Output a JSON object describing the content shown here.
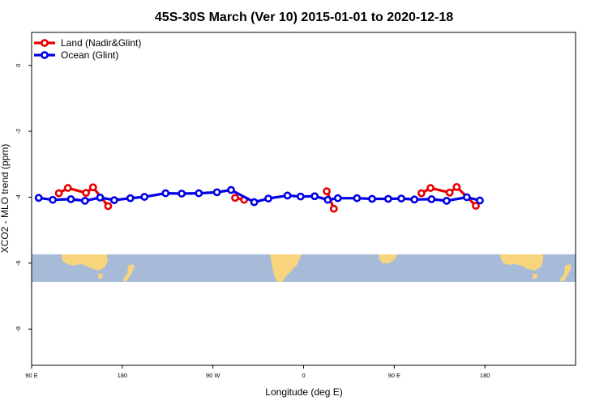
{
  "chart_data": {
    "type": "line",
    "title": "45S-30S March (Ver 10)   2015-01-01 to 2020-12-18",
    "xlabel": "Longitude (deg E)",
    "ylabel": "XCO2 - MLO trend (ppm)",
    "xlim": [
      90,
      630
    ],
    "ylim": [
      -9.1,
      1.0
    ],
    "x_ticks": [
      {
        "value": 90,
        "label": "90 E"
      },
      {
        "value": 180,
        "label": "180"
      },
      {
        "value": 270,
        "label": "90 W"
      },
      {
        "value": 360,
        "label": "0"
      },
      {
        "value": 450,
        "label": "90 E"
      },
      {
        "value": 540,
        "label": "180"
      }
    ],
    "y_ticks": [
      {
        "value": 0,
        "label": "0"
      },
      {
        "value": -2,
        "label": "-2"
      },
      {
        "value": -4,
        "label": "-4"
      },
      {
        "value": -6,
        "label": "-6"
      },
      {
        "value": -8,
        "label": "-8"
      }
    ],
    "legend_position": "top-left",
    "grid": false,
    "map_strip": {
      "y_top": -5.72,
      "y_bottom": -6.55,
      "ocean_color": "#a7bbd9",
      "land_color": "#f8d57d"
    },
    "series": [
      {
        "name": "Land (Nadir&Glint)",
        "color": "#e60000",
        "segments": [
          [
            [
              117,
              -3.88
            ],
            [
              126,
              -3.72
            ],
            [
              144,
              -3.87
            ],
            [
              151,
              -3.7
            ],
            [
              166,
              -4.27
            ]
          ],
          [
            [
              292,
              -4.02
            ],
            [
              301,
              -4.08
            ]
          ],
          [
            [
              383,
              -3.82
            ],
            [
              390,
              -4.35
            ]
          ],
          [
            [
              477,
              -3.88
            ],
            [
              486,
              -3.72
            ],
            [
              505,
              -3.86
            ],
            [
              512,
              -3.69
            ],
            [
              531,
              -4.26
            ]
          ]
        ]
      },
      {
        "name": "Ocean (Glint)",
        "color": "#0000e6",
        "segments": [
          [
            [
              97,
              -4.02
            ],
            [
              111,
              -4.08
            ],
            [
              129,
              -4.06
            ],
            [
              143,
              -4.11
            ],
            [
              158,
              -4.01
            ],
            [
              172,
              -4.09
            ],
            [
              188,
              -4.03
            ],
            [
              202,
              -3.99
            ],
            [
              223,
              -3.88
            ],
            [
              239,
              -3.89
            ],
            [
              256,
              -3.88
            ],
            [
              274,
              -3.85
            ],
            [
              288,
              -3.78
            ],
            [
              311,
              -4.15
            ],
            [
              325,
              -4.04
            ],
            [
              344,
              -3.95
            ],
            [
              357,
              -3.98
            ],
            [
              371,
              -3.97
            ],
            [
              384,
              -4.08
            ],
            [
              394,
              -4.03
            ],
            [
              413,
              -4.03
            ],
            [
              428,
              -4.05
            ],
            [
              444,
              -4.05
            ],
            [
              457,
              -4.04
            ],
            [
              470,
              -4.07
            ],
            [
              487,
              -4.06
            ],
            [
              502,
              -4.11
            ],
            [
              522,
              -4.0
            ],
            [
              535,
              -4.1
            ]
          ]
        ]
      }
    ]
  }
}
